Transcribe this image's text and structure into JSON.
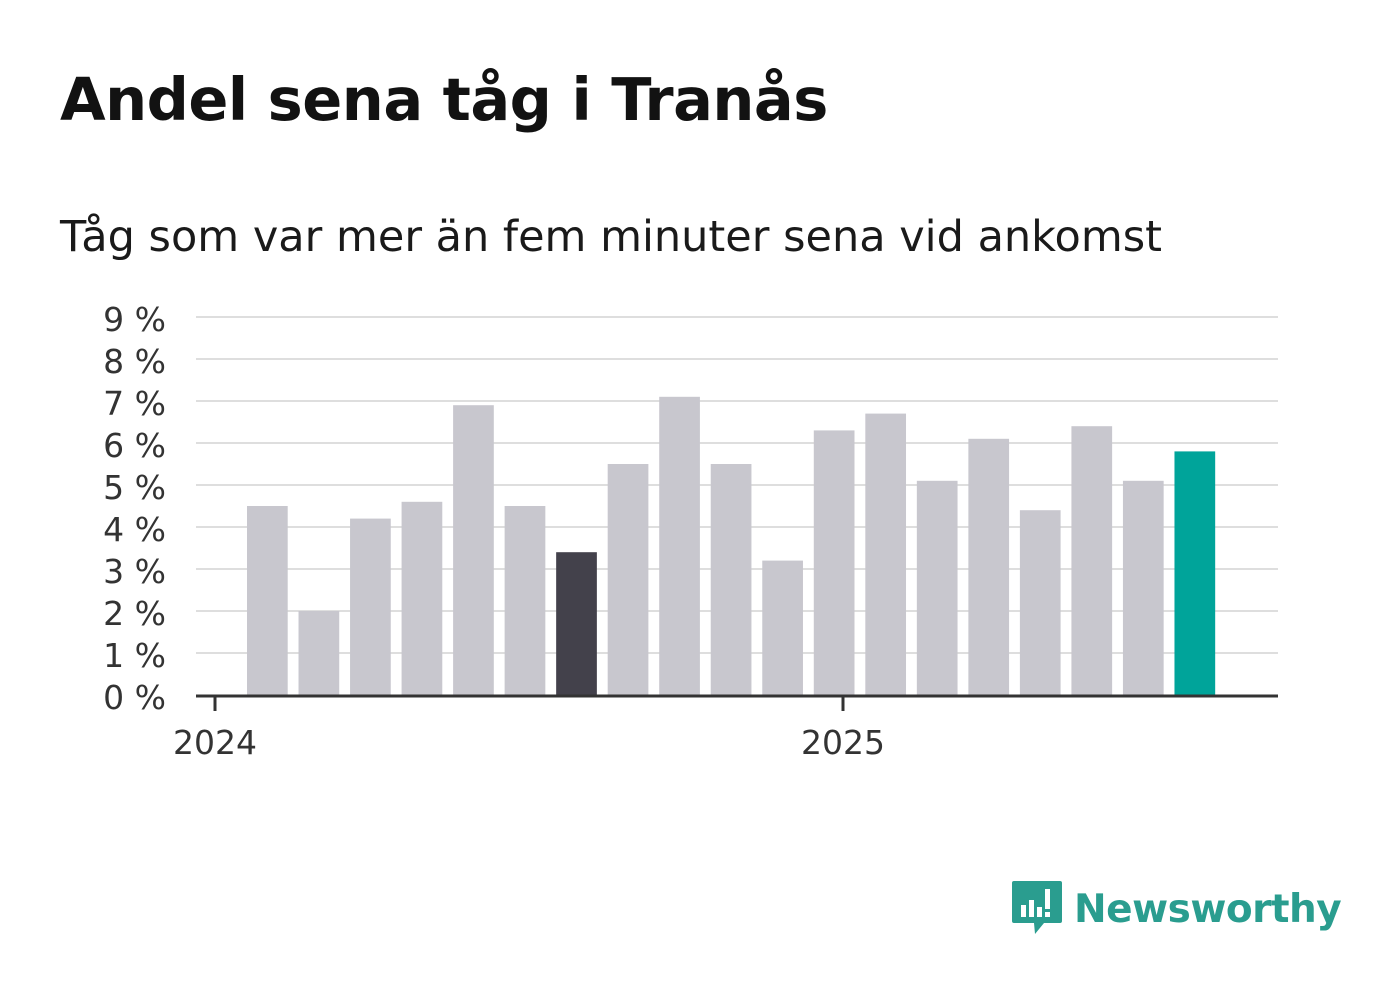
{
  "title": "Andel sena tåg i Tranås",
  "subtitle": "Tåg som var mer än fem minuter sena vid ankomst",
  "logo": {
    "text": "Newsworthy",
    "icon": "bar-chart-speech-bubble-icon"
  },
  "colors": {
    "bar": "#c8c7ce",
    "highlight_dark": "#43414b",
    "highlight_latest": "#00a49a",
    "gridline": "#dedede",
    "axis": "#333333",
    "brand": "#2a9d8f"
  },
  "chart_data": {
    "type": "bar",
    "title": "Andel sena tåg i Tranås",
    "subtitle": "Tåg som var mer än fem minuter sena vid ankomst",
    "x_tick_labels": [
      "2024",
      "2025"
    ],
    "y_tick_labels": [
      "0 %",
      "1 %",
      "2 %",
      "3 %",
      "4 %",
      "5 %",
      "6 %",
      "7 %",
      "8 %",
      "9 %"
    ],
    "ylim": [
      0,
      9
    ],
    "grid": true,
    "series": [
      {
        "values": [
          4.5,
          2.0,
          4.2,
          4.6,
          6.9,
          4.5,
          3.4,
          5.5,
          7.1,
          5.5,
          3.2,
          6.3,
          6.7,
          5.1,
          6.1,
          4.4,
          6.4,
          5.1,
          5.8
        ],
        "highlights": {
          "6": "highlight_dark",
          "18": "highlight_latest"
        }
      }
    ]
  }
}
